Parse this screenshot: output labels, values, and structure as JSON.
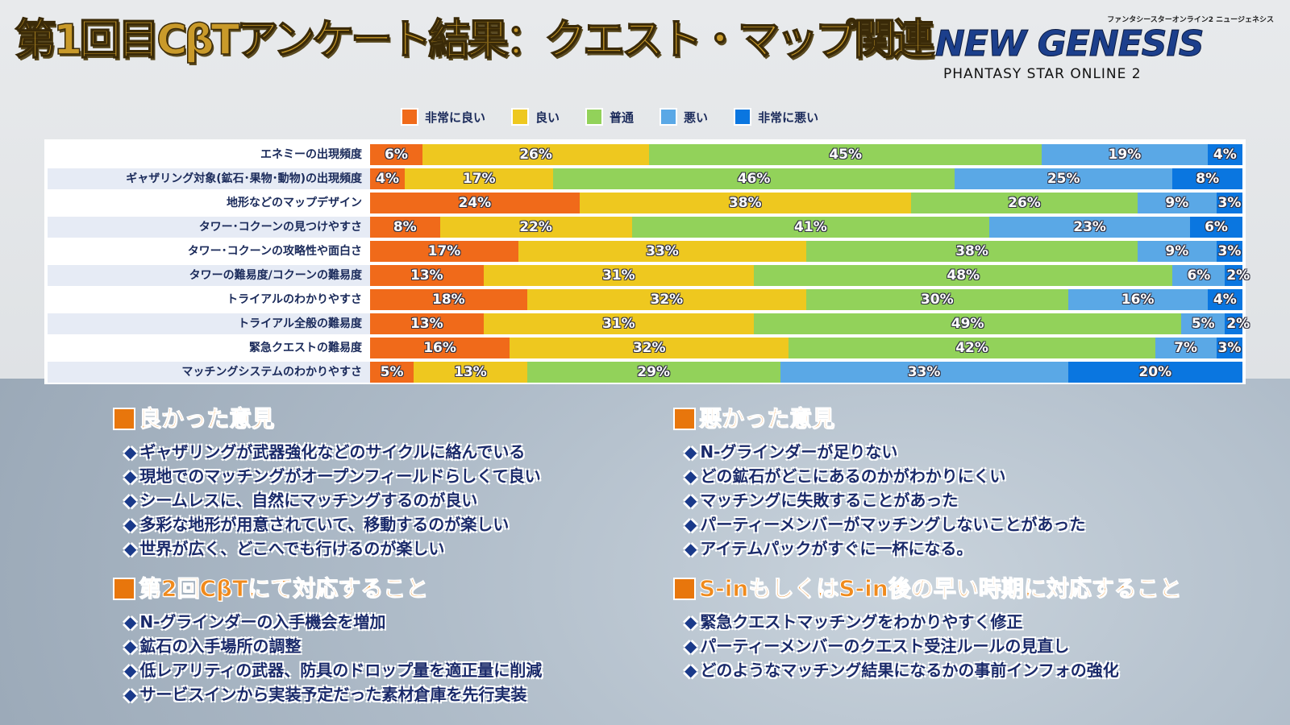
{
  "title": "第1回目CβTアンケート結果：クエスト・マップ関連",
  "logo": {
    "sub": "ファンタシースターオンライン2 ニュージェネシス",
    "main": "NEW GENESIS",
    "pso": "PHANTASY STAR ONLINE 2"
  },
  "chart_data": {
    "type": "bar",
    "stacked": true,
    "orientation": "horizontal",
    "legend": [
      "非常に良い",
      "良い",
      "普通",
      "悪い",
      "非常に悪い"
    ],
    "legend_placement": "top",
    "colors": [
      "#f06a1a",
      "#eec81f",
      "#92d25a",
      "#5aa8e6",
      "#0a76e0"
    ],
    "categories": [
      "エネミーの出現頻度",
      "ギャザリング対象(鉱石･果物･動物)の出現頻度",
      "地形などのマップデザイン",
      "タワー･コクーンの見つけやすさ",
      "タワー･コクーンの攻略性や面白さ",
      "タワーの難易度/コクーンの難易度",
      "トライアルのわかりやすさ",
      "トライアル全般の難易度",
      "緊急クエストの難易度",
      "マッチングシステムのわかりやすさ"
    ],
    "values": [
      [
        6,
        26,
        45,
        19,
        4
      ],
      [
        4,
        17,
        46,
        25,
        8
      ],
      [
        24,
        38,
        26,
        9,
        3
      ],
      [
        8,
        22,
        41,
        23,
        6
      ],
      [
        17,
        33,
        38,
        9,
        3
      ],
      [
        13,
        31,
        48,
        6,
        2
      ],
      [
        18,
        32,
        30,
        16,
        4
      ],
      [
        13,
        31,
        49,
        5,
        2
      ],
      [
        16,
        32,
        42,
        7,
        3
      ],
      [
        5,
        13,
        29,
        33,
        20
      ]
    ]
  },
  "sections": [
    {
      "title": "良かった意見",
      "items": [
        "ギャザリングが武器強化などのサイクルに絡んでいる",
        "現地でのマッチングがオープンフィールドらしくて良い",
        "シームレスに、自然にマッチングするのが良い",
        "多彩な地形が用意されていて、移動するのが楽しい",
        "世界が広く、どこへでも行けるのが楽しい"
      ]
    },
    {
      "title": "悪かった意見",
      "items": [
        "N-グラインダーが足りない",
        "どの鉱石がどこにあるのかがわかりにくい",
        "マッチングに失敗することがあった",
        "パーティーメンバーがマッチングしないことがあった",
        "アイテムパックがすぐに一杯になる。"
      ]
    },
    {
      "title": "第2回CβTにて対応すること",
      "items": [
        "N-グラインダーの入手機会を増加",
        "鉱石の入手場所の調整",
        "低レアリティの武器、防具のドロップ量を適正量に削減",
        "サービスインから実装予定だった素材倉庫を先行実装"
      ]
    },
    {
      "title": "S-inもしくはS-in後の早い時期に対応すること",
      "items": [
        "緊急クエストマッチングをわかりやすく修正",
        "パーティーメンバーのクエスト受注ルールの見直し",
        "どのようなマッチング結果になるかの事前インフォの強化"
      ]
    }
  ]
}
